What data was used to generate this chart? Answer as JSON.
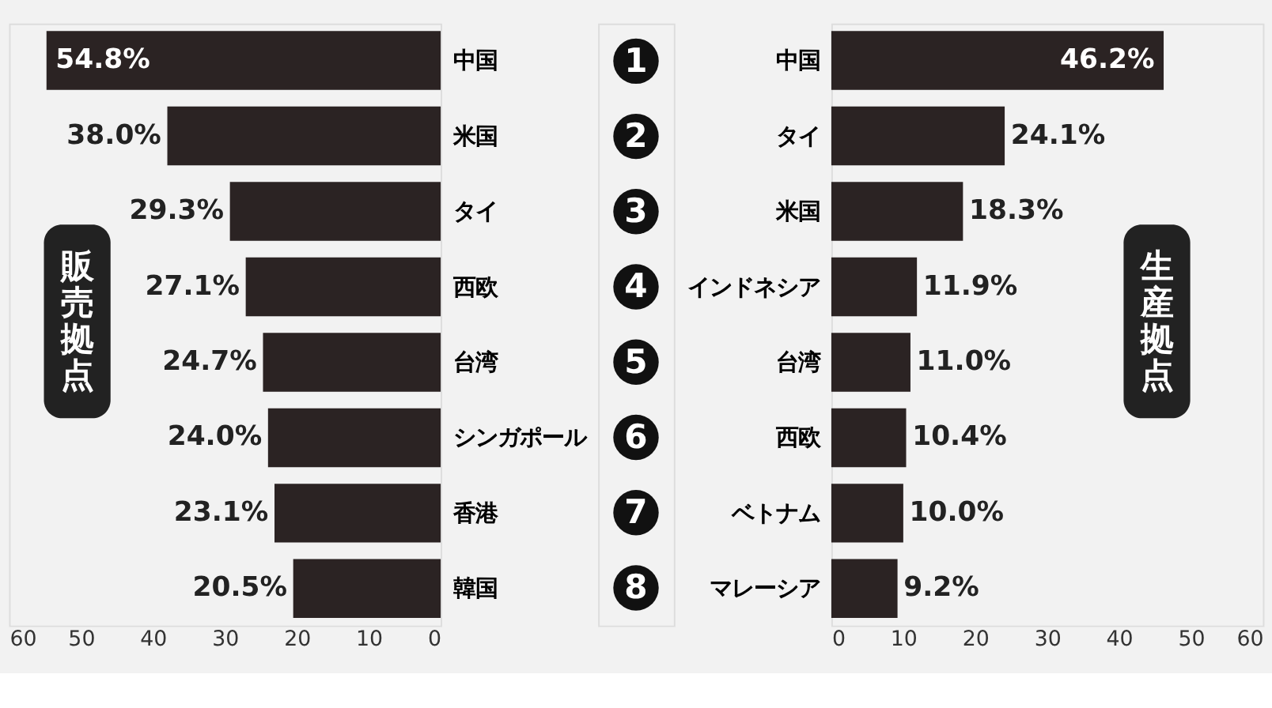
{
  "chart_data": [
    {
      "type": "bar",
      "orientation": "horizontal",
      "ylabel": "販売拠点",
      "categories": [
        "中国",
        "米国",
        "タイ",
        "西欧",
        "台湾",
        "シンガポール",
        "香港",
        "韓国"
      ],
      "values": [
        54.8,
        38.0,
        29.3,
        27.1,
        24.7,
        24.0,
        23.1,
        20.5
      ],
      "value_labels": [
        "54.8%",
        "38.0%",
        "29.3%",
        "27.1%",
        "24.7%",
        "24.0%",
        "23.1%",
        "20.5%"
      ],
      "color": "#2b2323",
      "xlim": [
        60,
        0
      ],
      "xticks": [
        60,
        50,
        40,
        30,
        20,
        10,
        0
      ],
      "grid": false,
      "annotations": [
        "1",
        "2",
        "3",
        "4",
        "5",
        "6",
        "7",
        "8"
      ]
    },
    {
      "type": "bar",
      "orientation": "horizontal",
      "ylabel": "生産拠点",
      "categories": [
        "中国",
        "タイ",
        "米国",
        "インドネシア",
        "台湾",
        "西欧",
        "ベトナム",
        "マレーシア"
      ],
      "values": [
        46.2,
        24.1,
        18.3,
        11.9,
        11.0,
        10.4,
        10.0,
        9.2
      ],
      "value_labels": [
        "46.2%",
        "24.1%",
        "18.3%",
        "11.9%",
        "11.0%",
        "10.4%",
        "10.0%",
        "9.2%"
      ],
      "color": "#2b2323",
      "xlim": [
        0,
        60
      ],
      "xticks": [
        0,
        10,
        20,
        30,
        40,
        50,
        60
      ],
      "grid": false
    }
  ]
}
